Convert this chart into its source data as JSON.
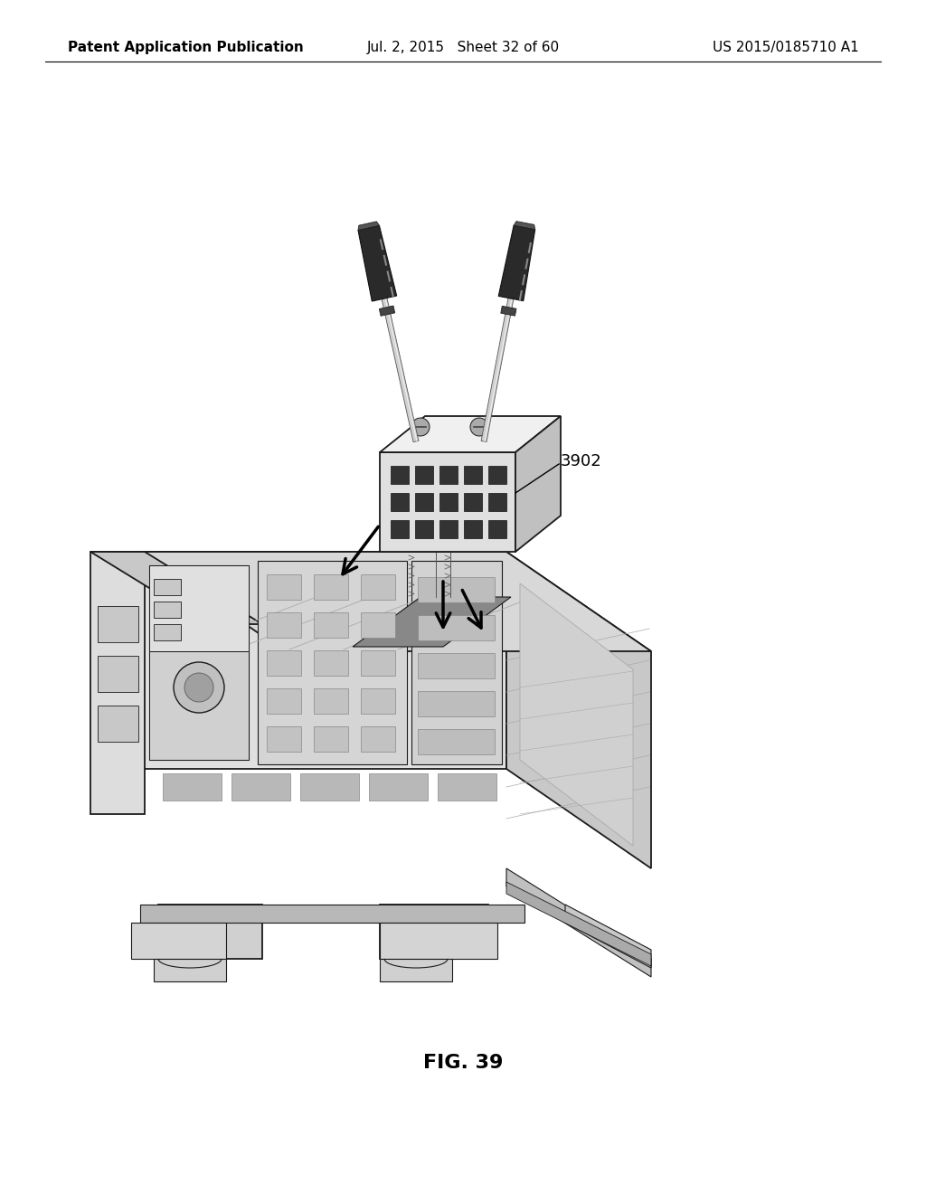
{
  "background_color": "#ffffff",
  "header_left": "Patent Application Publication",
  "header_center": "Jul. 2, 2015   Sheet 32 of 60",
  "header_right": "US 2015/0185710 A1",
  "header_fontsize": 11,
  "fig_label": "FIG. 39",
  "fig_label_fontsize": 16,
  "annotation_label": "3902",
  "annotation_fontsize": 13
}
